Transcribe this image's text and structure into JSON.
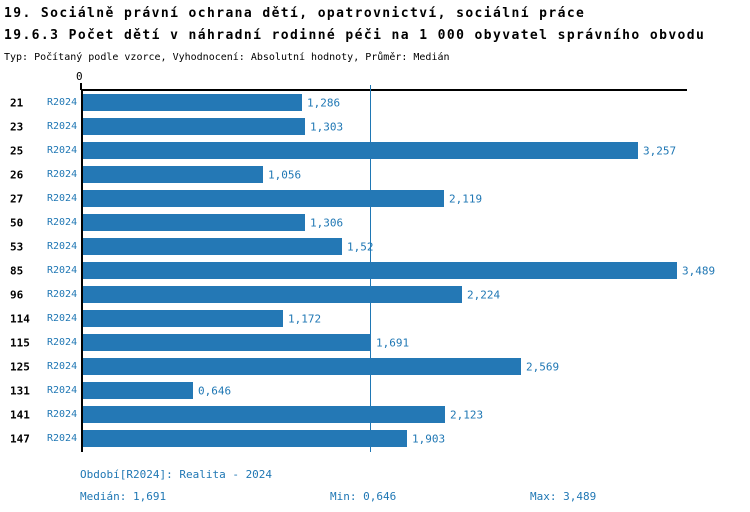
{
  "colors": {
    "accent_blue": "#1f77b4",
    "bar_blue": "#2478b5",
    "axis_black": "#000000"
  },
  "chart_data": {
    "type": "bar",
    "orientation": "horizontal",
    "title": "19. Sociálně právní ochrana dětí, opatrovnictví, sociální práce",
    "subtitle": "19.6.3 Počet dětí v náhradní rodinné péči na 1 000 obyvatel správního obvodu",
    "note": "Typ: Počítaný podle vzorce, Vyhodnocení: Absolutní hodnoty, Průměr: Medián",
    "categories": [
      "21",
      "23",
      "25",
      "26",
      "27",
      "50",
      "53",
      "85",
      "96",
      "114",
      "115",
      "125",
      "131",
      "141",
      "147"
    ],
    "series": [
      {
        "name": "R2024",
        "values": [
          1.286,
          1.303,
          3.257,
          1.056,
          2.119,
          1.306,
          1.52,
          3.489,
          2.224,
          1.172,
          1.691,
          2.569,
          0.646,
          2.123,
          1.903
        ],
        "value_labels": [
          "1,286",
          "1,303",
          "3,257",
          "1,056",
          "2,119",
          "1,306",
          "1,52",
          "3,489",
          "2,224",
          "1,172",
          "1,691",
          "2,569",
          "0,646",
          "2,123",
          "1,903"
        ]
      }
    ],
    "xlim": [
      0,
      3.546
    ],
    "x_tick_labels": [
      "0"
    ],
    "median_line": 1.691,
    "grid": false,
    "legend": false
  },
  "footer": {
    "period": "Období[R2024]: Realita - 2024",
    "median": "Medián: 1,691",
    "min": "Min: 0,646",
    "max": "Max: 3,489"
  }
}
